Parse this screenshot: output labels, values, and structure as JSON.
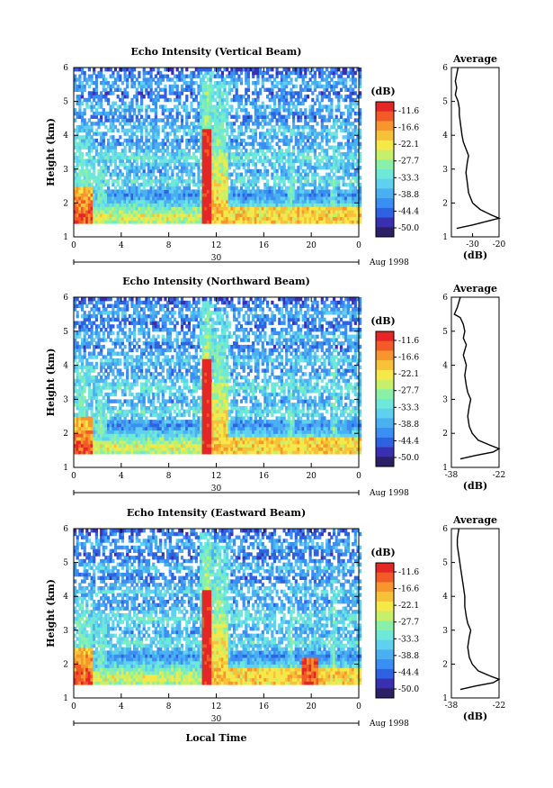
{
  "chart_data": [
    {
      "type": "heatmap",
      "title": "Echo Intensity (Vertical Beam)",
      "ylabel": "Height (km)",
      "xlabel": "",
      "xlim": [
        0,
        24
      ],
      "ylim": [
        1,
        6
      ],
      "x_ticks": [
        "0",
        "4",
        "8",
        "12",
        "16",
        "20",
        "0"
      ],
      "y_ticks": [
        "1",
        "2",
        "3",
        "4",
        "5",
        "6"
      ],
      "date_label": "30",
      "date_suffix": "Aug 1998",
      "colorbar": {
        "label": "(dB)",
        "ticks": [
          "-11.6",
          "-16.6",
          "-22.1",
          "-27.7",
          "-33.3",
          "-38.8",
          "-44.4",
          "-50.0"
        ]
      },
      "average": {
        "title": "Average",
        "xlabel": "(dB)",
        "xticks": [
          "-30",
          "-20"
        ],
        "xlim": [
          -38,
          -20
        ],
        "ylim": [
          1,
          6
        ],
        "y_ticks": [
          "1",
          "2",
          "3",
          "4",
          "5",
          "6"
        ],
        "profile": [
          [
            1.25,
            -36
          ],
          [
            1.35,
            -30
          ],
          [
            1.45,
            -25
          ],
          [
            1.55,
            -20
          ],
          [
            1.65,
            -23
          ],
          [
            1.8,
            -27
          ],
          [
            2.0,
            -30
          ],
          [
            2.3,
            -31.5
          ],
          [
            2.6,
            -32
          ],
          [
            2.9,
            -32.5
          ],
          [
            3.2,
            -32
          ],
          [
            3.4,
            -31.5
          ],
          [
            3.6,
            -32.5
          ],
          [
            3.8,
            -33.5
          ],
          [
            4.0,
            -34
          ],
          [
            4.3,
            -34.5
          ],
          [
            4.6,
            -35
          ],
          [
            4.8,
            -35
          ],
          [
            5.0,
            -35.5
          ],
          [
            5.2,
            -36.5
          ],
          [
            5.4,
            -36
          ],
          [
            5.6,
            -36.5
          ],
          [
            5.8,
            -36
          ],
          [
            6.0,
            -35.5
          ]
        ]
      }
    },
    {
      "type": "heatmap",
      "title": "Echo Intensity (Northward Beam)",
      "ylabel": "Height (km)",
      "xlabel": "",
      "xlim": [
        0,
        24
      ],
      "ylim": [
        1,
        6
      ],
      "x_ticks": [
        "0",
        "4",
        "8",
        "12",
        "16",
        "20",
        "0"
      ],
      "y_ticks": [
        "1",
        "2",
        "3",
        "4",
        "5",
        "6"
      ],
      "date_label": "30",
      "date_suffix": "Aug 1998",
      "colorbar": {
        "label": "(dB)",
        "ticks": [
          "-11.6",
          "-16.6",
          "-22.1",
          "-27.7",
          "-33.3",
          "-38.8",
          "-44.4",
          "-50.0"
        ]
      },
      "average": {
        "title": "Average",
        "xlabel": "(dB)",
        "xticks": [
          "-38",
          "-22"
        ],
        "xlim": [
          -38,
          -22
        ],
        "ylim": [
          1,
          6
        ],
        "y_ticks": [
          "1",
          "2",
          "3",
          "4",
          "5",
          "6"
        ],
        "profile": [
          [
            1.25,
            -35
          ],
          [
            1.35,
            -30
          ],
          [
            1.45,
            -24
          ],
          [
            1.55,
            -22
          ],
          [
            1.65,
            -25
          ],
          [
            1.8,
            -29
          ],
          [
            2.0,
            -31
          ],
          [
            2.2,
            -32
          ],
          [
            2.5,
            -32.5
          ],
          [
            2.8,
            -32
          ],
          [
            3.0,
            -31.5
          ],
          [
            3.2,
            -32.5
          ],
          [
            3.4,
            -33
          ],
          [
            3.7,
            -33.5
          ],
          [
            4.0,
            -33
          ],
          [
            4.3,
            -34
          ],
          [
            4.6,
            -33
          ],
          [
            4.8,
            -34
          ],
          [
            5.0,
            -33.5
          ],
          [
            5.2,
            -34
          ],
          [
            5.4,
            -35
          ],
          [
            5.5,
            -37
          ],
          [
            5.7,
            -36
          ],
          [
            6.0,
            -35
          ]
        ]
      }
    },
    {
      "type": "heatmap",
      "title": "Echo Intensity (Eastward Beam)",
      "ylabel": "Height (km)",
      "xlabel": "Local Time",
      "xlim": [
        0,
        24
      ],
      "ylim": [
        1,
        6
      ],
      "x_ticks": [
        "0",
        "4",
        "8",
        "12",
        "16",
        "20",
        "0"
      ],
      "y_ticks": [
        "1",
        "2",
        "3",
        "4",
        "5",
        "6"
      ],
      "date_label": "30",
      "date_suffix": "Aug 1998",
      "colorbar": {
        "label": "(dB)",
        "ticks": [
          "-11.6",
          "-16.6",
          "-22.1",
          "-27.7",
          "-33.3",
          "-38.8",
          "-44.4",
          "-50.0"
        ]
      },
      "average": {
        "title": "Average",
        "xlabel": "(dB)",
        "xticks": [
          "-38",
          "-22"
        ],
        "xlim": [
          -38,
          -22
        ],
        "ylim": [
          1,
          6
        ],
        "y_ticks": [
          "1",
          "2",
          "3",
          "4",
          "5",
          "6"
        ],
        "profile": [
          [
            1.25,
            -35
          ],
          [
            1.35,
            -30
          ],
          [
            1.45,
            -24
          ],
          [
            1.55,
            -22
          ],
          [
            1.65,
            -25
          ],
          [
            1.8,
            -29
          ],
          [
            2.0,
            -31
          ],
          [
            2.2,
            -32
          ],
          [
            2.5,
            -32.5
          ],
          [
            2.8,
            -32
          ],
          [
            3.0,
            -31.5
          ],
          [
            3.2,
            -32.5
          ],
          [
            3.4,
            -33
          ],
          [
            3.7,
            -33.5
          ],
          [
            4.0,
            -33.5
          ],
          [
            4.3,
            -34
          ],
          [
            4.6,
            -34.5
          ],
          [
            4.9,
            -35
          ],
          [
            5.2,
            -35.5
          ],
          [
            5.5,
            -36
          ],
          [
            5.7,
            -36
          ],
          [
            6.0,
            -35.5
          ]
        ]
      }
    }
  ]
}
